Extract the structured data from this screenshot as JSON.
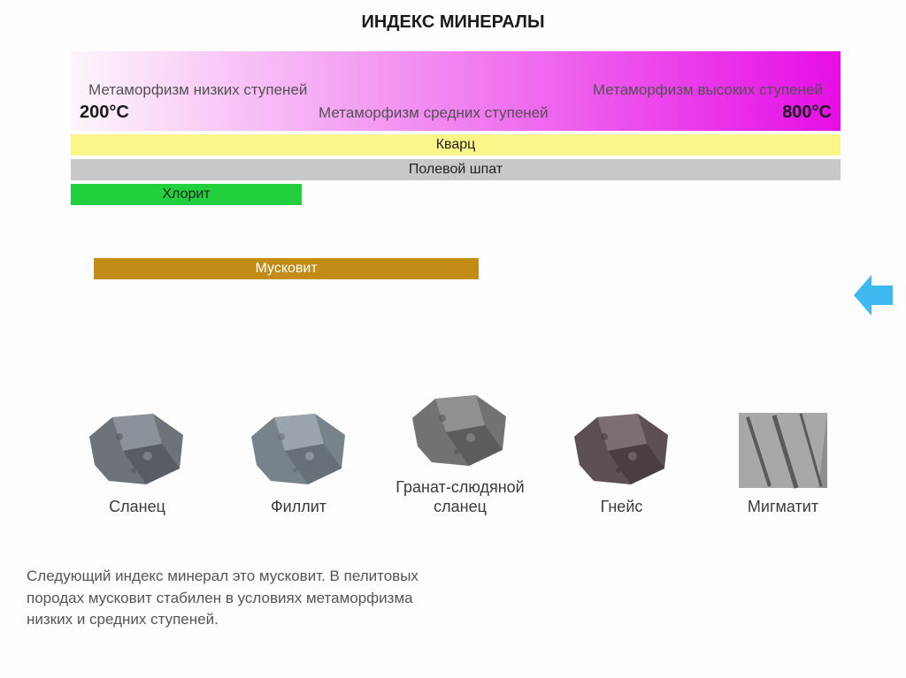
{
  "title": "ИНДЕКС МИНЕРАЛЫ",
  "gradient": {
    "low_label": "Метаморфизм низких ступеней",
    "mid_label": "Метаморфизм средних ступеней",
    "high_label": "Метаморфизм высоких ступеней",
    "low_temp": "200°C",
    "high_temp": "800°C",
    "color_left": "#fdf6fb",
    "color_right": "#e60ee6",
    "height": 90
  },
  "bands": [
    {
      "label": "Кварц",
      "left_pct": 0,
      "width_pct": 100,
      "bg": "#fbf58a",
      "text": "#222"
    },
    {
      "label": "Полевой шпат",
      "left_pct": 0,
      "width_pct": 100,
      "bg": "#c9c9c9",
      "text": "#222"
    },
    {
      "label": "Хлорит",
      "left_pct": 0,
      "width_pct": 30,
      "bg": "#22d03e",
      "text": "#222"
    },
    {
      "label": "Мусковит",
      "left_pct": 3,
      "width_pct": 50,
      "bg": "#c28c17",
      "text": "#fff",
      "gap_before": 60
    }
  ],
  "arrow_color": "#3db8f0",
  "rocks": [
    {
      "label": "Сланец",
      "colors": [
        "#6d7379",
        "#9aa0a6",
        "#4a4f55"
      ],
      "shape": "chunk"
    },
    {
      "label": "Филлит",
      "colors": [
        "#77838a",
        "#a9b3b9",
        "#5b656b"
      ],
      "shape": "chunk"
    },
    {
      "label": "Гранат-слюдяной сланец",
      "colors": [
        "#727272",
        "#9c9c9c",
        "#4e4e4e"
      ],
      "shape": "chunk"
    },
    {
      "label": "Гнейс",
      "colors": [
        "#5c5053",
        "#8a7c7f",
        "#3c3235"
      ],
      "shape": "chunk"
    },
    {
      "label": "Мигматит",
      "colors": [
        "#8e8e8e",
        "#c2c2c2",
        "#5a5a5a"
      ],
      "shape": "slab"
    }
  ],
  "caption": "Следующий индекс минерал это мусковит. В пелитовых породах мусковит стабилен в условиях метаморфизма низких и средних ступеней."
}
